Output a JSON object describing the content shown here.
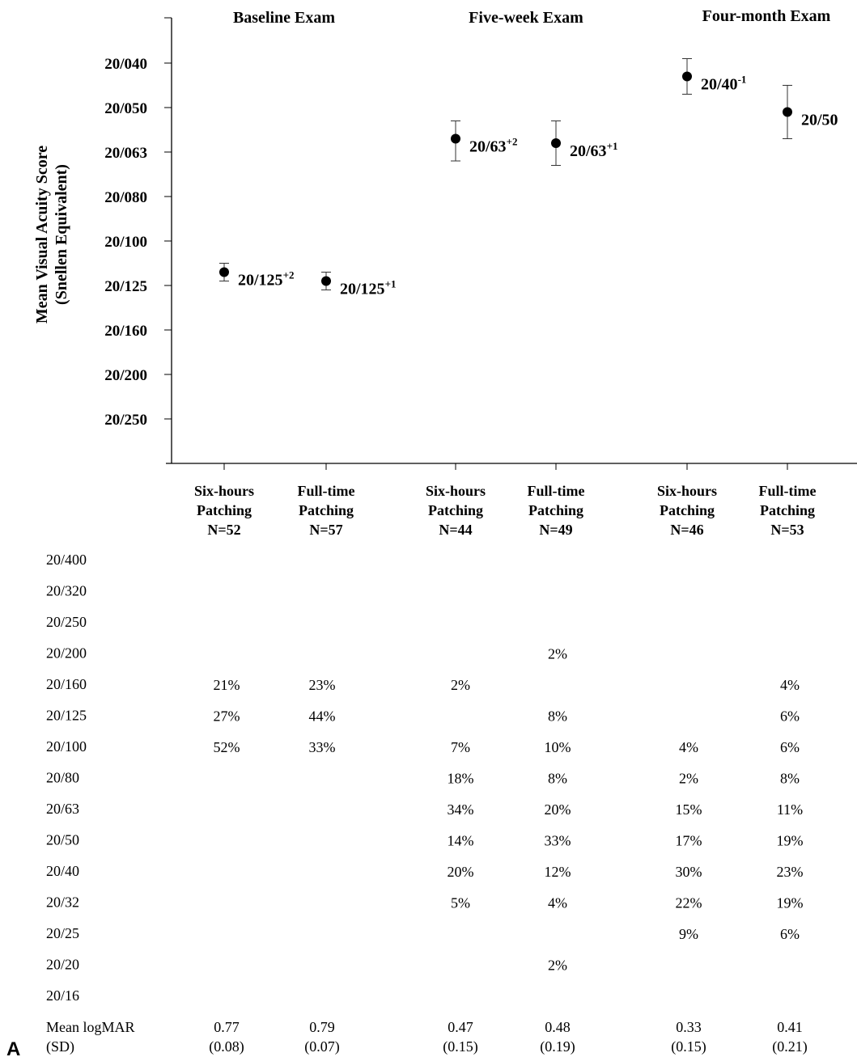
{
  "panel_letter": "A",
  "chart_data": {
    "type": "scatter",
    "ylabel": [
      "Mean Visual Acuity Score",
      "(Snellen Equivalent)"
    ],
    "y_ticks": [
      "20/040",
      "20/050",
      "20/063",
      "20/080",
      "20/100",
      "20/125",
      "20/160",
      "20/200",
      "20/250"
    ],
    "y_tick_logmar": [
      0.3,
      0.4,
      0.5,
      0.6,
      0.7,
      0.8,
      0.9,
      1.0,
      1.1
    ],
    "ylim_logmar": [
      1.2,
      0.2
    ],
    "y_axis_inverted": true,
    "exams": [
      "Baseline Exam",
      "Five-week Exam",
      "Four-month Exam"
    ],
    "groups": [
      {
        "exam": "Baseline Exam",
        "label": [
          "Six-hours",
          "Patching",
          "N=52"
        ],
        "mean_logmar": 0.77,
        "sd": 0.08,
        "snellen": "20/125",
        "superscript": "+2",
        "ci_logmar": [
          0.75,
          0.79
        ]
      },
      {
        "exam": "Baseline Exam",
        "label": [
          "Full-time",
          "Patching",
          "N=57"
        ],
        "mean_logmar": 0.79,
        "sd": 0.07,
        "snellen": "20/125",
        "superscript": "+1",
        "ci_logmar": [
          0.77,
          0.81
        ]
      },
      {
        "exam": "Five-week Exam",
        "label": [
          "Six-hours",
          "Patching",
          "N=44"
        ],
        "mean_logmar": 0.47,
        "sd": 0.15,
        "snellen": "20/63",
        "superscript": "+2",
        "ci_logmar": [
          0.43,
          0.52
        ]
      },
      {
        "exam": "Five-week Exam",
        "label": [
          "Full-time",
          "Patching",
          "N=49"
        ],
        "mean_logmar": 0.48,
        "sd": 0.19,
        "snellen": "20/63",
        "superscript": "+1",
        "ci_logmar": [
          0.43,
          0.53
        ]
      },
      {
        "exam": "Four-month Exam",
        "label": [
          "Six-hours",
          "Patching",
          "N=46"
        ],
        "mean_logmar": 0.33,
        "sd": 0.15,
        "snellen": "20/40",
        "superscript": "-1",
        "ci_logmar": [
          0.29,
          0.37
        ]
      },
      {
        "exam": "Four-month Exam",
        "label": [
          "Full-time",
          "Patching",
          "N=53"
        ],
        "mean_logmar": 0.41,
        "sd": 0.21,
        "snellen": "20/50",
        "superscript": "",
        "ci_logmar": [
          0.35,
          0.47
        ]
      }
    ],
    "distribution_table": {
      "rows": [
        "20/400",
        "20/320",
        "20/250",
        "20/200",
        "20/160",
        "20/125",
        "20/100",
        "20/80",
        "20/63",
        "20/50",
        "20/40",
        "20/32",
        "20/25",
        "20/20",
        "20/16"
      ],
      "columns": [
        [
          "",
          "",
          "",
          "",
          "21%",
          "27%",
          "52%",
          "",
          "",
          "",
          "",
          "",
          "",
          "",
          ""
        ],
        [
          "",
          "",
          "",
          "",
          "23%",
          "44%",
          "33%",
          "",
          "",
          "",
          "",
          "",
          "",
          "",
          ""
        ],
        [
          "",
          "",
          "",
          "",
          "2%",
          "",
          "7%",
          "18%",
          "34%",
          "14%",
          "20%",
          "5%",
          "",
          "",
          ""
        ],
        [
          "",
          "",
          "",
          "2%",
          "",
          "8%",
          "10%",
          "8%",
          "20%",
          "33%",
          "12%",
          "4%",
          "",
          "2%",
          ""
        ],
        [
          "",
          "",
          "",
          "",
          "",
          "",
          "4%",
          "2%",
          "15%",
          "17%",
          "30%",
          "22%",
          "9%",
          "",
          ""
        ],
        [
          "",
          "",
          "",
          "",
          "4%",
          "6%",
          "6%",
          "8%",
          "11%",
          "19%",
          "23%",
          "19%",
          "6%",
          "",
          ""
        ]
      ],
      "summary_label": [
        "Mean logMAR",
        "(SD)"
      ],
      "means": [
        "0.77",
        "0.79",
        "0.47",
        "0.48",
        "0.33",
        "0.41"
      ],
      "sds": [
        "(0.08)",
        "(0.07)",
        "(0.15)",
        "(0.19)",
        "(0.15)",
        "(0.21)"
      ]
    }
  }
}
